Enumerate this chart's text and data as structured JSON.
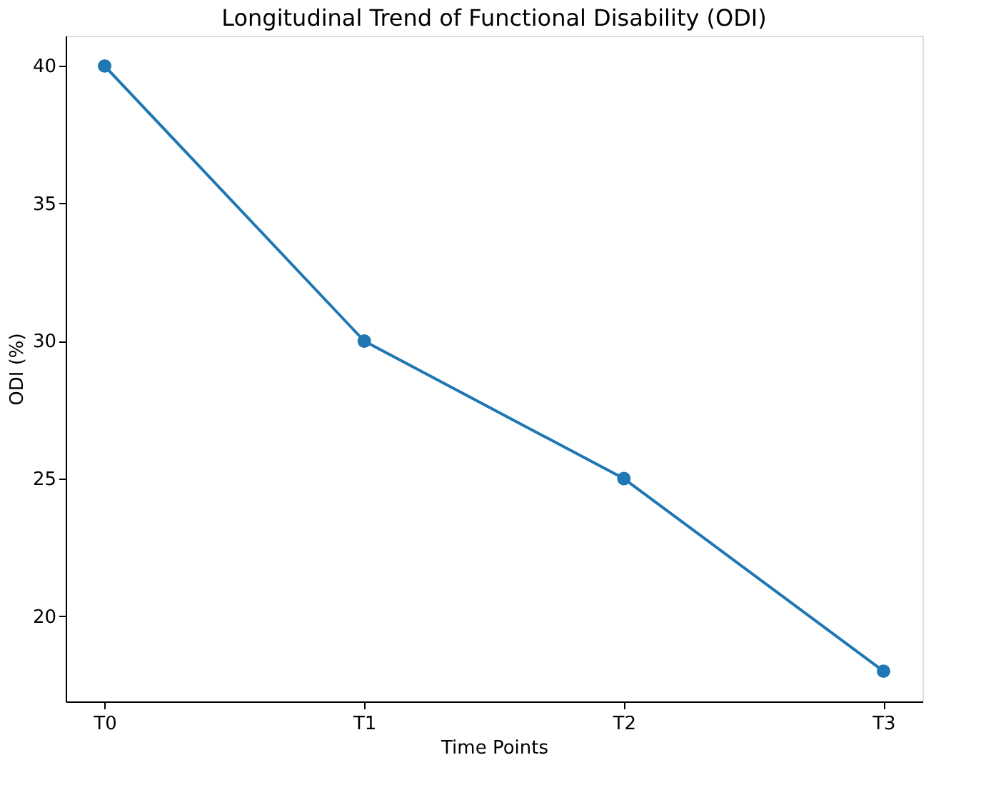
{
  "chart_data": {
    "type": "line",
    "title": "Longitudinal Trend of Functional Disability (ODI)",
    "xlabel": "Time Points",
    "ylabel": "ODI (%)",
    "categories": [
      "T0",
      "T1",
      "T2",
      "T3"
    ],
    "series": [
      {
        "color": "#1f77b4",
        "values": [
          40,
          30,
          25,
          18
        ]
      }
    ],
    "ylim": [
      16.9,
      41.1
    ],
    "yticks": [
      20,
      25,
      30,
      35,
      40
    ],
    "marker": "circle",
    "line_style": "solid",
    "grid": false
  }
}
